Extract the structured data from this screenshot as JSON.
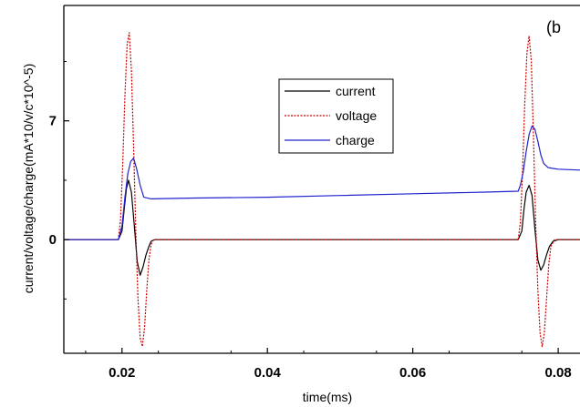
{
  "chart_data": {
    "type": "line",
    "panel_label": "(b",
    "xlabel": "time(ms)",
    "ylabel": "current/voltage/charge(mA*10/v/c*10^-5)",
    "xlim": [
      0.012,
      0.083
    ],
    "ylim": [
      -6.7,
      13.8
    ],
    "x_ticks": [
      0.02,
      0.04,
      0.06,
      0.08
    ],
    "x_tick_labels": [
      "0.02",
      "0.04",
      "0.06",
      "0.08"
    ],
    "y_ticks": [
      0,
      7
    ],
    "y_tick_labels": [
      "0",
      "7"
    ],
    "grid": false,
    "legend_position": "upper-center",
    "series": [
      {
        "name": "current",
        "color": "#000000",
        "dash": "solid",
        "x": [
          0.012,
          0.0195,
          0.02,
          0.0203,
          0.0206,
          0.0209,
          0.0213,
          0.0217,
          0.0221,
          0.0225,
          0.0229,
          0.0233,
          0.0237,
          0.024,
          0.0245,
          0.03,
          0.04,
          0.05,
          0.06,
          0.07,
          0.0745,
          0.075,
          0.0753,
          0.0756,
          0.076,
          0.0764,
          0.0768,
          0.0772,
          0.0776,
          0.078,
          0.0784,
          0.0788,
          0.0793,
          0.08,
          0.083
        ],
        "values": [
          0,
          0,
          0.5,
          1.8,
          3.0,
          3.5,
          2.8,
          0.8,
          -1.3,
          -2.1,
          -1.6,
          -0.9,
          -0.4,
          -0.1,
          0,
          0,
          0,
          0,
          0,
          0,
          0,
          0.5,
          1.8,
          2.8,
          3.2,
          2.6,
          0.6,
          -1.2,
          -1.8,
          -1.5,
          -0.9,
          -0.4,
          -0.1,
          0,
          0
        ]
      },
      {
        "name": "voltage",
        "color": "#cc0000",
        "dash": "dotted",
        "x": [
          0.012,
          0.0195,
          0.0198,
          0.0201,
          0.0204,
          0.0207,
          0.021,
          0.0213,
          0.0216,
          0.0219,
          0.0222,
          0.0225,
          0.0228,
          0.0231,
          0.0234,
          0.0237,
          0.024,
          0.0243,
          0.0246,
          0.03,
          0.04,
          0.05,
          0.06,
          0.07,
          0.0745,
          0.0748,
          0.0751,
          0.0754,
          0.0757,
          0.076,
          0.0763,
          0.0766,
          0.0769,
          0.0772,
          0.0775,
          0.0778,
          0.0781,
          0.0784,
          0.0787,
          0.079,
          0.0795,
          0.08,
          0.083
        ],
        "values": [
          0,
          0,
          1.2,
          4.5,
          8.5,
          11.5,
          12.2,
          10.0,
          5.5,
          0.5,
          -3.5,
          -5.8,
          -6.3,
          -5.2,
          -3.0,
          -1.2,
          -0.3,
          0,
          0,
          0,
          0,
          0,
          0,
          0,
          0,
          1.0,
          4.0,
          8.0,
          11.0,
          12.0,
          10.5,
          6.0,
          1.0,
          -3.0,
          -5.5,
          -6.3,
          -5.5,
          -3.5,
          -1.5,
          -0.4,
          0,
          0,
          0
        ]
      },
      {
        "name": "charge",
        "color": "#2222cc",
        "dash": "solid",
        "x": [
          0.012,
          0.0195,
          0.02,
          0.0204,
          0.0208,
          0.0212,
          0.0216,
          0.022,
          0.0225,
          0.023,
          0.024,
          0.03,
          0.04,
          0.05,
          0.06,
          0.07,
          0.0745,
          0.0748,
          0.0752,
          0.0756,
          0.076,
          0.0764,
          0.0768,
          0.0772,
          0.0776,
          0.078,
          0.0786,
          0.0792,
          0.08,
          0.083
        ],
        "values": [
          0,
          0,
          0.8,
          2.5,
          3.9,
          4.6,
          4.8,
          4.2,
          3.2,
          2.5,
          2.4,
          2.45,
          2.5,
          2.6,
          2.7,
          2.8,
          2.85,
          3.2,
          4.0,
          5.2,
          6.2,
          6.7,
          6.5,
          5.8,
          5.0,
          4.5,
          4.25,
          4.2,
          4.15,
          4.1
        ]
      }
    ]
  }
}
